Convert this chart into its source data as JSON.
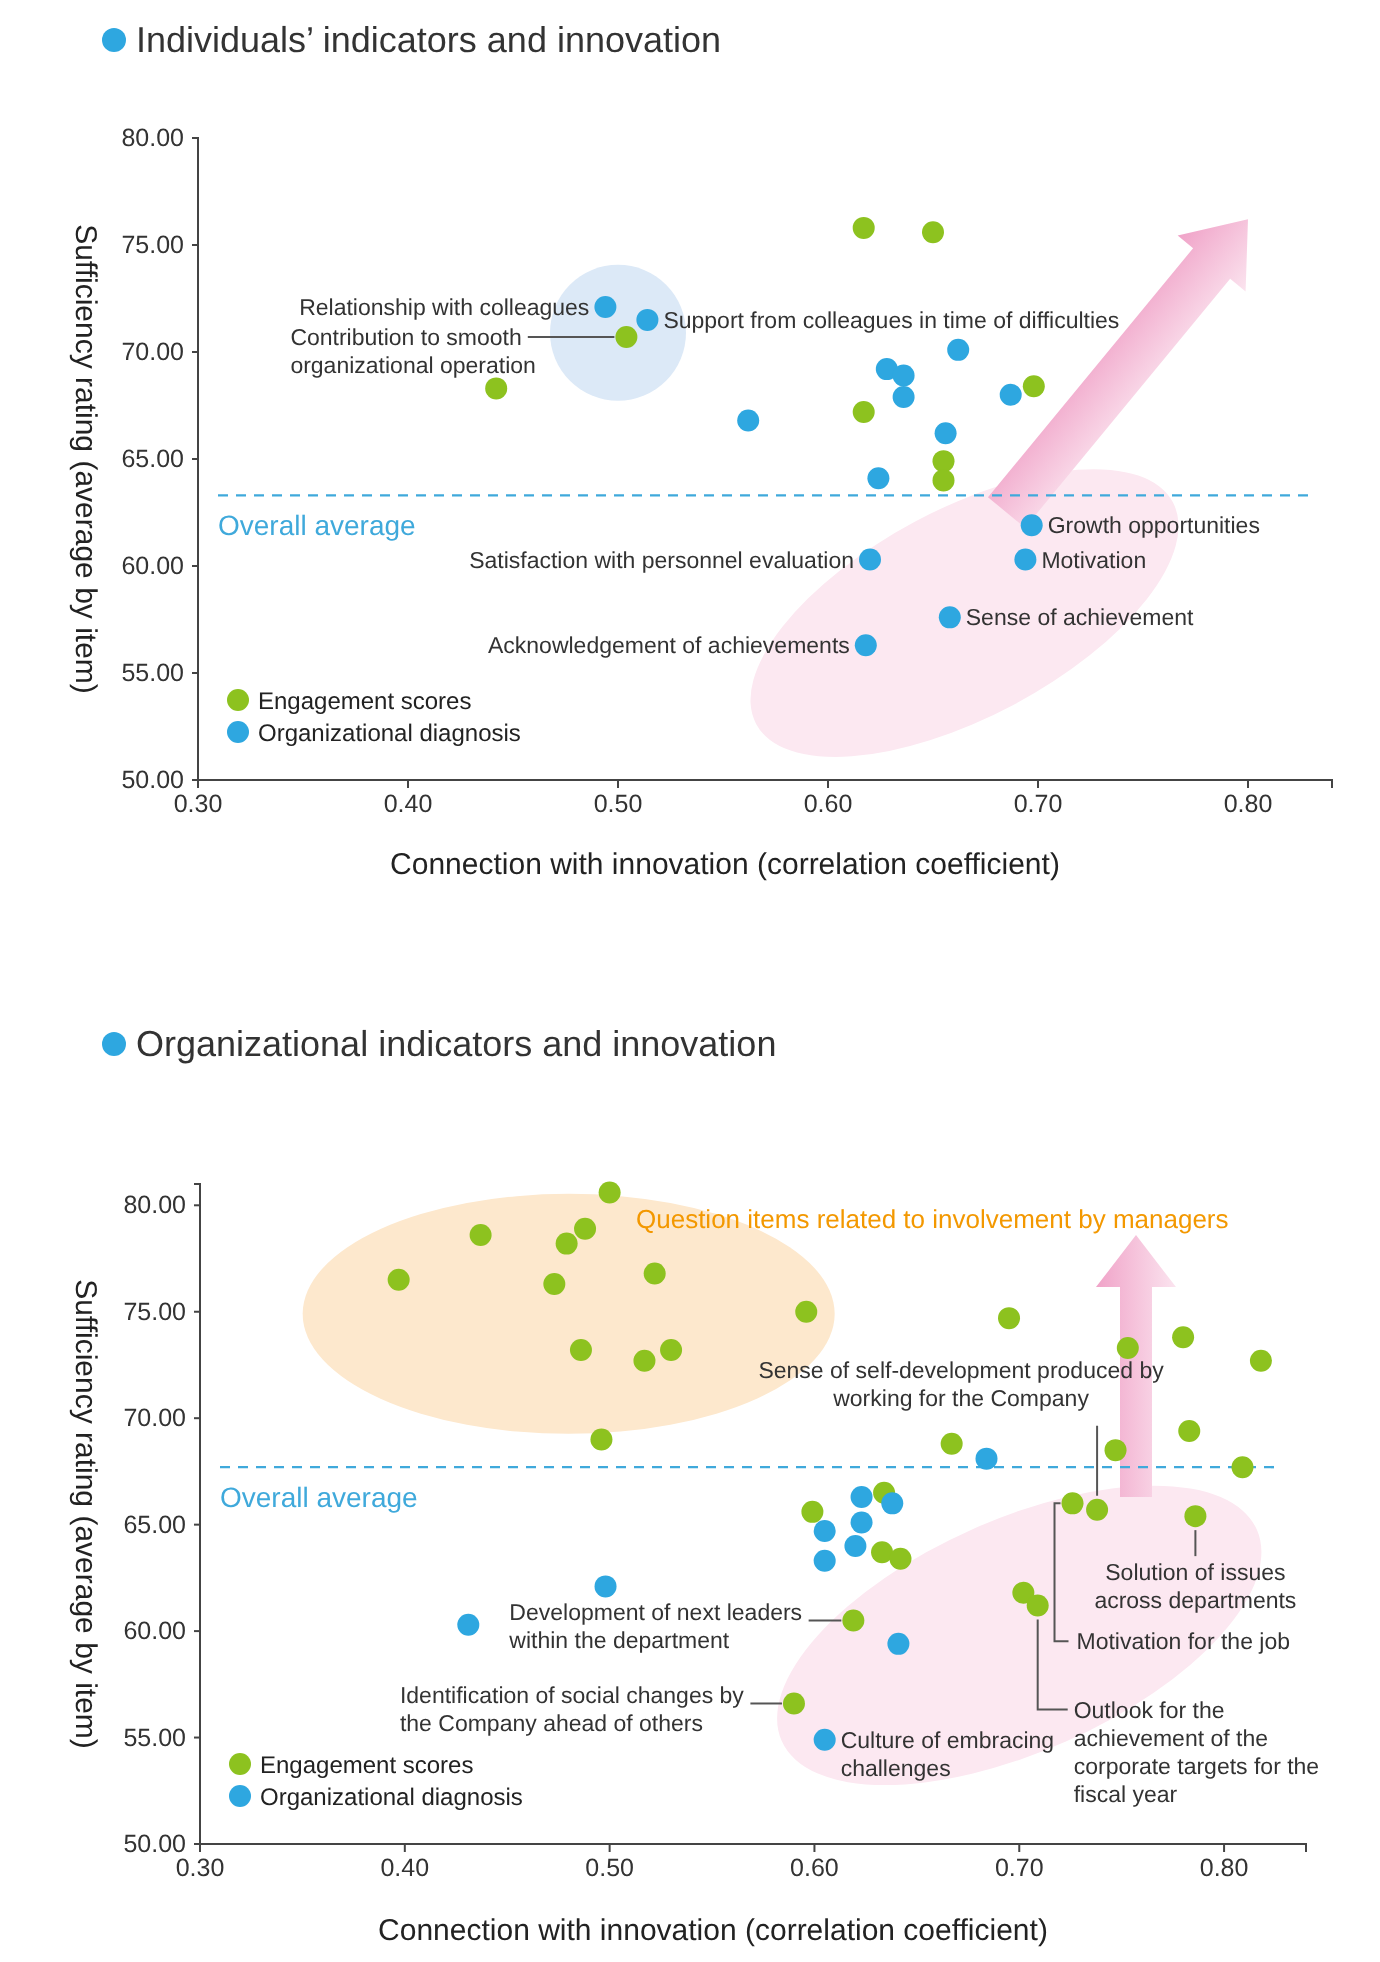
{
  "chart_data": [
    {
      "type": "scatter",
      "title": "Individuals’ indicators and innovation",
      "xlabel": "Connection with innovation (correlation coefficient)",
      "ylabel": "Sufficiency rating (average by item)",
      "xlim": [
        0.3,
        0.84
      ],
      "ylim": [
        50,
        80
      ],
      "xticks": [
        {
          "value": 0.3,
          "label": "0.30"
        },
        {
          "value": 0.4,
          "label": "0.40"
        },
        {
          "value": 0.5,
          "label": "0.50"
        },
        {
          "value": 0.6,
          "label": "0.60"
        },
        {
          "value": 0.7,
          "label": "0.70"
        },
        {
          "value": 0.8,
          "label": "0.80"
        }
      ],
      "yticks": [
        {
          "value": 50,
          "label": "50.00"
        },
        {
          "value": 55,
          "label": "55.00"
        },
        {
          "value": 60,
          "label": "60.00"
        },
        {
          "value": 65,
          "label": "65.00"
        },
        {
          "value": 70,
          "label": "70.00"
        },
        {
          "value": 75,
          "label": "75.00"
        },
        {
          "value": 80,
          "label": "80.00"
        }
      ],
      "marker": "circle",
      "legend": "bottom left",
      "series": [
        {
          "name": "Engagement scores",
          "color": "#8dc21f",
          "x": [
            0.617,
            0.65,
            0.504,
            0.442,
            0.617,
            0.655,
            0.655,
            0.698
          ],
          "values": [
            75.8,
            75.6,
            70.7,
            68.3,
            67.2,
            64.9,
            64.0,
            68.4
          ]
        },
        {
          "name": "Organizational diagnosis",
          "color": "#2ea7e0",
          "x": [
            0.628,
            0.636,
            0.636,
            0.662,
            0.656,
            0.624,
            0.687,
            0.697,
            0.62,
            0.694,
            0.658,
            0.618,
            0.494,
            0.514,
            0.562
          ],
          "values": [
            69.2,
            68.9,
            67.9,
            70.1,
            66.2,
            64.1,
            68.0,
            61.9,
            60.3,
            60.3,
            57.6,
            56.3,
            72.1,
            71.5,
            66.8
          ]
        }
      ],
      "ref_lines": [
        {
          "axis": "y",
          "value": 63.3,
          "label": "Overall average",
          "color": "#3fa9db",
          "line_style": "dashed"
        }
      ],
      "annotations": [
        {
          "text": "Relationship with colleagues",
          "x": 0.494,
          "y": 72.1
        },
        {
          "text": "Support from colleagues in time of difficulties",
          "x": 0.514,
          "y": 71.5
        },
        {
          "text": "Contribution to smooth organizational operation",
          "x": 0.504,
          "y": 70.7
        },
        {
          "text": "Satisfaction with personnel evaluation",
          "x": 0.62,
          "y": 60.3
        },
        {
          "text": "Growth opportunities",
          "x": 0.697,
          "y": 61.9
        },
        {
          "text": "Motivation",
          "x": 0.694,
          "y": 60.3
        },
        {
          "text": "Sense of achievement",
          "x": 0.658,
          "y": 57.6
        },
        {
          "text": "Acknowledgement of achievements",
          "x": 0.618,
          "y": 56.3
        }
      ]
    },
    {
      "type": "scatter",
      "title": "Organizational indicators and innovation",
      "xlabel": "Connection with innovation (correlation coefficient)",
      "ylabel": "Sufficiency rating (average by item)",
      "xlim": [
        0.3,
        0.84
      ],
      "ylim": [
        50,
        81
      ],
      "xticks": [
        {
          "value": 0.3,
          "label": "0.30"
        },
        {
          "value": 0.4,
          "label": "0.40"
        },
        {
          "value": 0.5,
          "label": "0.50"
        },
        {
          "value": 0.6,
          "label": "0.60"
        },
        {
          "value": 0.7,
          "label": "0.70"
        },
        {
          "value": 0.8,
          "label": "0.80"
        }
      ],
      "yticks": [
        {
          "value": 50,
          "label": "50.00"
        },
        {
          "value": 55,
          "label": "55.00"
        },
        {
          "value": 60,
          "label": "60.00"
        },
        {
          "value": 65,
          "label": "65.00"
        },
        {
          "value": 70,
          "label": "70.00"
        },
        {
          "value": 75,
          "label": "75.00"
        },
        {
          "value": 80,
          "label": "80.00"
        }
      ],
      "marker": "circle",
      "legend": "bottom left",
      "series": [
        {
          "name": "Engagement scores",
          "color": "#8dc21f",
          "x": [
            0.5,
            0.437,
            0.488,
            0.479,
            0.397,
            0.473,
            0.522,
            0.486,
            0.517,
            0.53,
            0.496,
            0.596,
            0.695,
            0.753,
            0.78,
            0.818,
            0.783,
            0.747,
            0.667,
            0.809,
            0.634,
            0.599,
            0.726,
            0.738,
            0.786,
            0.633,
            0.642,
            0.702,
            0.709,
            0.619,
            0.59
          ],
          "values": [
            80.6,
            78.6,
            78.9,
            78.2,
            76.5,
            76.3,
            76.8,
            73.2,
            72.7,
            73.2,
            69.0,
            75.0,
            74.7,
            73.3,
            73.8,
            72.7,
            69.4,
            68.5,
            68.8,
            67.7,
            66.5,
            65.6,
            66.0,
            65.7,
            65.4,
            63.7,
            63.4,
            61.8,
            61.2,
            60.5,
            56.6
          ]
        },
        {
          "name": "Organizational diagnosis",
          "color": "#2ea7e0",
          "x": [
            0.498,
            0.431,
            0.684,
            0.623,
            0.638,
            0.605,
            0.623,
            0.62,
            0.605,
            0.641,
            0.605
          ],
          "values": [
            62.1,
            60.3,
            68.1,
            66.3,
            66.0,
            64.7,
            65.1,
            64.0,
            63.3,
            59.4,
            54.9
          ]
        }
      ],
      "ref_lines": [
        {
          "axis": "y",
          "value": 67.7,
          "label": "Overall average",
          "color": "#3fa9db",
          "line_style": "dashed"
        }
      ],
      "annotations": [
        {
          "text": "Sense of self-development produced by working for the Company",
          "x": 0.738,
          "y": 65.7
        },
        {
          "text": "Motivation for the job",
          "x": 0.726,
          "y": 66.0
        },
        {
          "text": "Solution of issues across departments",
          "x": 0.786,
          "y": 65.4
        },
        {
          "text": "Outlook for the achievement of the corporate targets for the fiscal year",
          "x": 0.709,
          "y": 61.2
        },
        {
          "text": "Development of next leaders within the department",
          "x": 0.619,
          "y": 60.5
        },
        {
          "text": "Identification of social changes by the Company ahead of others",
          "x": 0.59,
          "y": 56.6
        },
        {
          "text": "Culture of embracing challenges",
          "x": 0.605,
          "y": 54.9
        },
        "Question items related to involvement by managers"
      ]
    }
  ]
}
